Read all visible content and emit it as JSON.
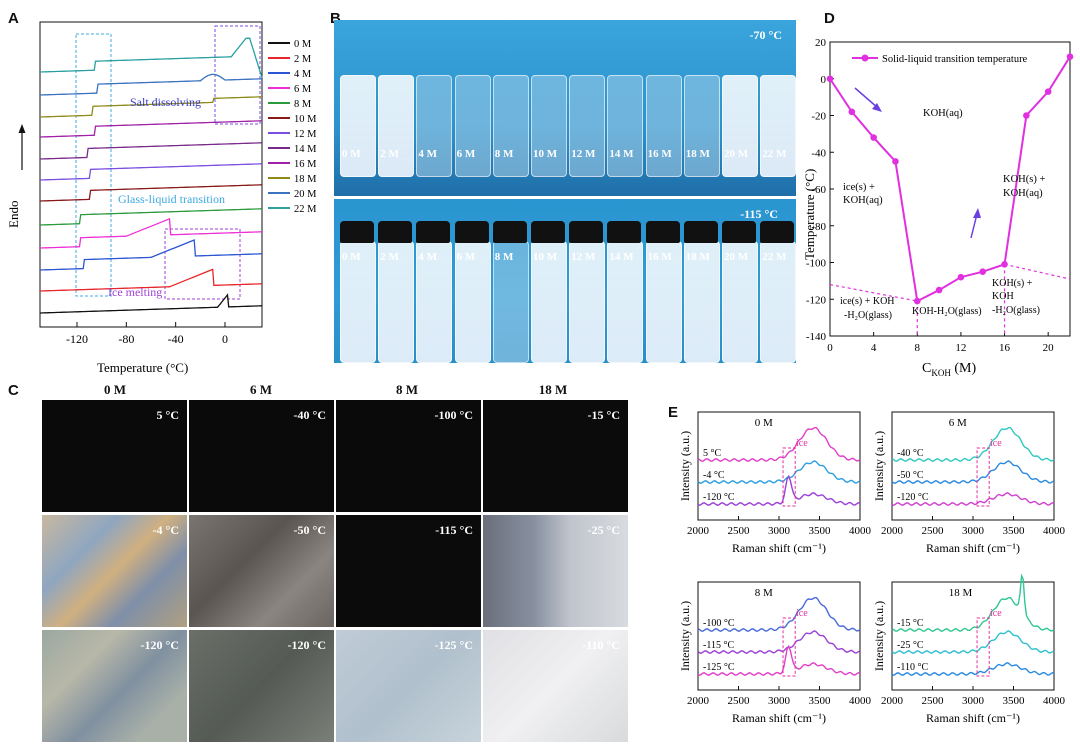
{
  "panels": {
    "A": "A",
    "B": "B",
    "C": "C",
    "D": "D",
    "E": "E"
  },
  "panelA": {
    "ylabel": "Endo",
    "xlabel": "Temperature (°C)",
    "xticks": [
      "-120",
      "-80",
      "-40",
      "0"
    ],
    "annotations": {
      "salt": "Salt dissolving",
      "glass": "Glass-liquid transition",
      "ice": "Ice melting"
    },
    "legend": [
      "0 M",
      "2 M",
      "4 M",
      "6 M",
      "8 M",
      "10 M",
      "12 M",
      "14 M",
      "16 M",
      "18 M",
      "20 M",
      "22 M"
    ],
    "colors": [
      "#111111",
      "#e8262a",
      "#2a55d4",
      "#ee2fd8",
      "#2a9a3c",
      "#8a1a1a",
      "#7a4fe0",
      "#7a2a8a",
      "#a020a8",
      "#8f8a18",
      "#3a72c0",
      "#2aa0a0"
    ]
  },
  "panelB": {
    "top_temp": "-70 °C",
    "bottom_temp": "-115 °C",
    "labels": [
      "0 M",
      "2 M",
      "4 M",
      "6 M",
      "8 M",
      "10 M",
      "12 M",
      "14 M",
      "16 M",
      "18 M",
      "20 M",
      "22 M"
    ]
  },
  "panelC": {
    "columns": [
      "0 M",
      "6 M",
      "8 M",
      "18 M"
    ],
    "rows": [
      [
        "5 °C",
        "-40 °C",
        "-100 °C",
        "-15 °C"
      ],
      [
        "-4 °C",
        "-50 °C",
        "-115 °C",
        "-25 °C"
      ],
      [
        "-120 °C",
        "-120 °C",
        "-125 °C",
        "-110 °C"
      ]
    ]
  },
  "chart_data": [
    {
      "type": "line",
      "title": "",
      "legend": "Solid-liquid transition temperature",
      "xlabel": "C",
      "xlabel_sub": "KOH",
      "xlabel_unit": " (M)",
      "ylabel": "Temperature (°C)",
      "xlim": [
        0,
        22
      ],
      "ylim": [
        -140,
        20
      ],
      "xticks": [
        "0",
        "4",
        "8",
        "12",
        "16",
        "20"
      ],
      "yticks": [
        "20",
        "0",
        "-20",
        "-40",
        "-60",
        "-80",
        "-100",
        "-120",
        "-140"
      ],
      "x": [
        0,
        2,
        4,
        6,
        8,
        10,
        12,
        14,
        16,
        18,
        20,
        22
      ],
      "y": [
        0,
        -18,
        -32,
        -45,
        -121,
        -115,
        -108,
        -105,
        -101,
        -20,
        -7,
        12
      ],
      "regions": {
        "r1": "KOH(aq)",
        "r2a": "ice(s) +",
        "r2b": "KOH(aq)",
        "r3a": "KOH(s) +",
        "r3b": "KOH(aq)",
        "r4a": "ice(s) + KOH",
        "r4b": "-H₂O(glass)",
        "r5": "KOH-H₂O(glass)",
        "r6a": "KOH(s) +",
        "r6b": "KOH",
        "r6c": "-H₂O(glass)"
      }
    },
    {
      "type": "line",
      "xticks": [
        "2000",
        "2500",
        "3000",
        "3500",
        "4000"
      ],
      "xlabel": "Raman shift (cm⁻¹)",
      "ylabel": "Intensity (a.u.)",
      "ice_label": "ice",
      "subplots": [
        {
          "conc": "0 M",
          "series": [
            {
              "name": "5 °C",
              "color": "#e040c8"
            },
            {
              "name": "-4 °C",
              "color": "#2aa0e0"
            },
            {
              "name": "-120 °C",
              "color": "#9a40d8"
            }
          ]
        },
        {
          "conc": "6 M",
          "series": [
            {
              "name": "-40 °C",
              "color": "#30c8c0"
            },
            {
              "name": "-50 °C",
              "color": "#2a8ae0"
            },
            {
              "name": "-120 °C",
              "color": "#d040d0"
            }
          ]
        },
        {
          "conc": "8 M",
          "series": [
            {
              "name": "-100 °C",
              "color": "#4a6ad8"
            },
            {
              "name": "-115 °C",
              "color": "#9a40d8"
            },
            {
              "name": "-125 °C",
              "color": "#e040c8"
            }
          ]
        },
        {
          "conc": "18 M",
          "series": [
            {
              "name": "-15 °C",
              "color": "#30c890"
            },
            {
              "name": "-25 °C",
              "color": "#30c0d0"
            },
            {
              "name": "-110 °C",
              "color": "#2a8ae0"
            }
          ]
        }
      ]
    }
  ]
}
